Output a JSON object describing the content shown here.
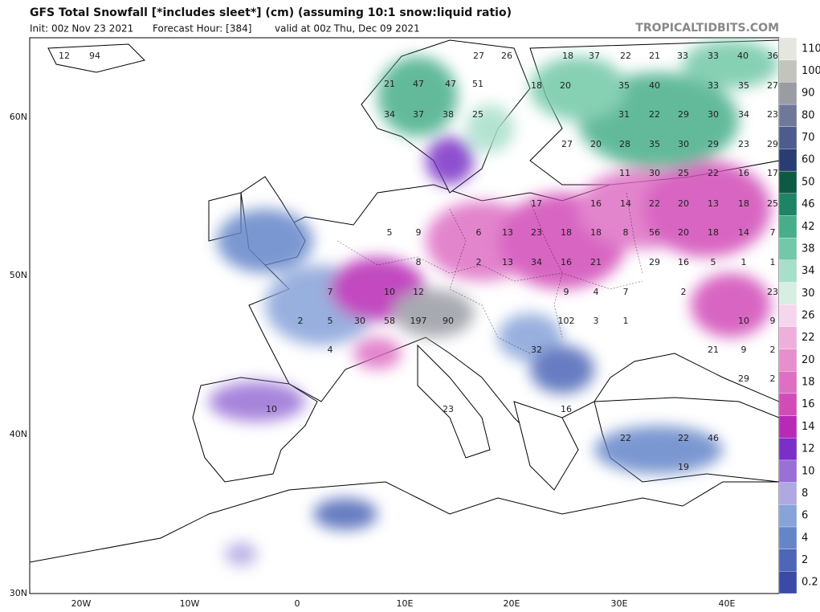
{
  "header": {
    "title": "GFS Total Snowfall [*includes sleet*] (cm) (assuming 10:1 snow:liquid ratio)",
    "init": "Init: 00z Nov 23 2021",
    "forecast_hour": "Forecast Hour: [384]",
    "valid": "valid at 00z Thu, Dec 09 2021",
    "watermark": "TROPICALTIDBITS.COM"
  },
  "map": {
    "lat_labels": [
      "60N",
      "50N",
      "40N",
      "30N"
    ],
    "lon_labels": [
      "20W",
      "10W",
      "0",
      "10E",
      "20E",
      "30E",
      "40E"
    ],
    "labels": [
      "12",
      "94",
      "27",
      "26",
      "18",
      "37",
      "22",
      "21",
      "33",
      "33",
      "40",
      "36",
      "21",
      "47",
      "47",
      "51",
      "18",
      "20",
      "35",
      "40",
      "33",
      "35",
      "27",
      "34",
      "37",
      "38",
      "25",
      "31",
      "22",
      "29",
      "30",
      "34",
      "23",
      "27",
      "20",
      "28",
      "35",
      "30",
      "29",
      "23",
      "29",
      "11",
      "30",
      "25",
      "22",
      "16",
      "17",
      "17",
      "16",
      "14",
      "22",
      "20",
      "13",
      "18",
      "25",
      "5",
      "9",
      "6",
      "13",
      "23",
      "18",
      "18",
      "8",
      "56",
      "20",
      "18",
      "14",
      "7",
      "8",
      "2",
      "13",
      "34",
      "16",
      "21",
      "29",
      "16",
      "5",
      "1",
      "1",
      "7",
      "10",
      "12",
      "9",
      "4",
      "7",
      "2",
      "23",
      "2",
      "5",
      "30",
      "58",
      "197",
      "90",
      "102",
      "3",
      "1",
      "10",
      "9",
      "4",
      "32",
      "21",
      "9",
      "2",
      "29",
      "2",
      "10",
      "23",
      "16",
      "22",
      "22",
      "46",
      "19"
    ]
  },
  "colorbar": {
    "labels": [
      0.2,
      2,
      4,
      6,
      8,
      10,
      12,
      14,
      16,
      18,
      20,
      22,
      26,
      30,
      34,
      38,
      42,
      46,
      50,
      60,
      70,
      80,
      90,
      100,
      110
    ],
    "colors": [
      "#3a4aa6",
      "#4d66b8",
      "#6585c9",
      "#87a3d9",
      "#b0a8e2",
      "#9870d6",
      "#7a30c6",
      "#b82ab6",
      "#d24cb8",
      "#de70c4",
      "#e68fcc",
      "#eeb0da",
      "#f6d6ec",
      "#d6efe2",
      "#a8dfca",
      "#72c8a8",
      "#46ae8a",
      "#1f8466",
      "#0d5a44",
      "#2a3d72",
      "#4d5c8c",
      "#70789a",
      "#9a9ca4",
      "#c4c4be",
      "#e6e6de"
    ]
  }
}
